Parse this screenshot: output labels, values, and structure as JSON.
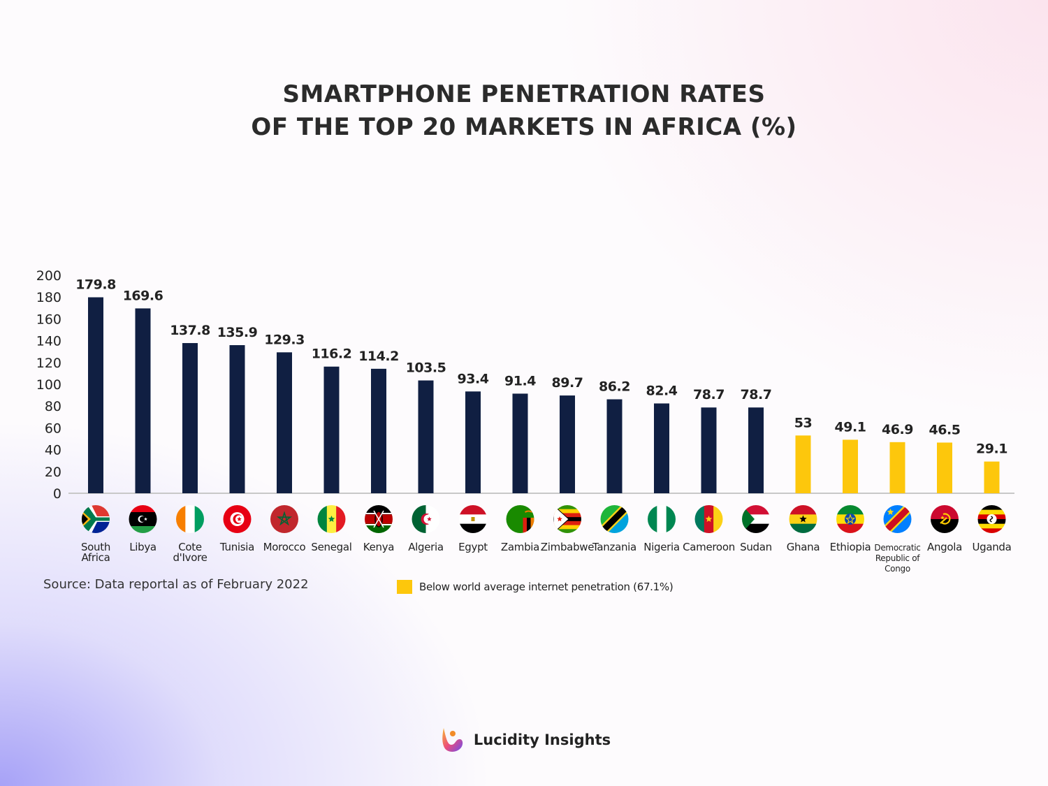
{
  "title": {
    "line1": "SMARTPHONE PENETRATION RATES",
    "line2": "OF THE TOP 20 MARKETS IN AFRICA (%)"
  },
  "source": "Source: Data reportal as of February 2022",
  "legend": {
    "label": "Below world average internet penetration (67.1%)",
    "color": "#fdc70c"
  },
  "brand": {
    "name": "Lucidity Insights"
  },
  "colors": {
    "bar_default": "#101f42",
    "bar_highlight": "#fdc70c",
    "axis": "#c8c8c8"
  },
  "chart_data": {
    "type": "bar",
    "categories": [
      "South Africa",
      "Libya",
      "Cote d'Ivore",
      "Tunisia",
      "Morocco",
      "Senegal",
      "Kenya",
      "Algeria",
      "Egypt",
      "Zambia",
      "Zimbabwe",
      "Tanzania",
      "Nigeria",
      "Cameroon",
      "Sudan",
      "Ghana",
      "Ethiopia",
      "Democratic Republic of Congo",
      "Angola",
      "Uganda"
    ],
    "category_label_lines": [
      [
        "South",
        "Africa"
      ],
      [
        "Libya"
      ],
      [
        "Cote",
        "d'Ivore"
      ],
      [
        "Tunisia"
      ],
      [
        "Morocco"
      ],
      [
        "Senegal"
      ],
      [
        "Kenya"
      ],
      [
        "Algeria"
      ],
      [
        "Egypt"
      ],
      [
        "Zambia"
      ],
      [
        "Zimbabwe"
      ],
      [
        "Tanzania"
      ],
      [
        "Nigeria"
      ],
      [
        "Cameroon"
      ],
      [
        "Sudan"
      ],
      [
        "Ghana"
      ],
      [
        "Ethiopia"
      ],
      [
        "Democratic",
        "Republic of",
        "Congo"
      ],
      [
        "Angola"
      ],
      [
        "Uganda"
      ]
    ],
    "values": [
      179.8,
      169.6,
      137.8,
      135.9,
      129.3,
      116.2,
      114.2,
      103.5,
      93.4,
      91.4,
      89.7,
      86.2,
      82.4,
      78.7,
      78.7,
      53,
      49.1,
      46.9,
      46.5,
      29.1
    ],
    "value_labels": [
      "179.8",
      "169.6",
      "137.8",
      "135.9",
      "129.3",
      "116.2",
      "114.2",
      "103.5",
      "93.4",
      "91.4",
      "89.7",
      "86.2",
      "82.4",
      "78.7",
      "78.7",
      "53",
      "49.1",
      "46.9",
      "46.5",
      "29.1"
    ],
    "below_world_average": [
      false,
      false,
      false,
      false,
      false,
      false,
      false,
      false,
      false,
      false,
      false,
      false,
      false,
      false,
      false,
      true,
      true,
      true,
      true,
      true
    ],
    "flag_icons": [
      "south-africa-flag-icon",
      "libya-flag-icon",
      "cote-divoire-flag-icon",
      "tunisia-flag-icon",
      "morocco-flag-icon",
      "senegal-flag-icon",
      "kenya-flag-icon",
      "algeria-flag-icon",
      "egypt-flag-icon",
      "zambia-flag-icon",
      "zimbabwe-flag-icon",
      "tanzania-flag-icon",
      "nigeria-flag-icon",
      "cameroon-flag-icon",
      "sudan-flag-icon",
      "ghana-flag-icon",
      "ethiopia-flag-icon",
      "dr-congo-flag-icon",
      "angola-flag-icon",
      "uganda-flag-icon"
    ],
    "yticks": [
      0,
      20,
      40,
      60,
      80,
      100,
      120,
      140,
      160,
      180,
      200
    ],
    "ylim": [
      0,
      200
    ],
    "grid": false,
    "legend_position": "bottom"
  }
}
